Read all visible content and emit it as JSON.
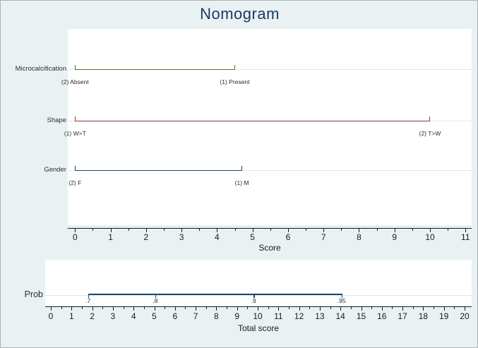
{
  "title": "Nomogram",
  "colors": {
    "background": "#e9f1f3",
    "panel": "#ffffff",
    "row_line": "#dbe8eb",
    "axis": "#1a1a1a",
    "title_text": "#1b3a66",
    "label_text": "#2b2b30",
    "navy": "#1a476f",
    "maroon": "#90353b",
    "green": "#55752f"
  },
  "chart_data": [
    {
      "type": "nomogram",
      "title": "Nomogram",
      "xlabel": "Score",
      "xlim": [
        0,
        11
      ],
      "major_tick_step": 1,
      "minor_tick_step": 0.5,
      "x_tick_labels": [
        "0",
        "1",
        "2",
        "3",
        "4",
        "5",
        "6",
        "7",
        "8",
        "9",
        "10",
        "11"
      ],
      "grid": false,
      "rows": [
        {
          "label": "Microcalcification",
          "color_key": "green",
          "range": [
            0,
            4.5
          ],
          "start_label": "(2) Absent",
          "end_label": "(1) Present"
        },
        {
          "label": "Shape",
          "color_key": "maroon",
          "range": [
            0,
            10
          ],
          "start_label": "(1) W>T",
          "end_label": "(2) T>W"
        },
        {
          "label": "Gender",
          "color_key": "navy",
          "range": [
            0,
            4.7
          ],
          "start_label": "(2) F",
          "end_label": "(1) M"
        }
      ]
    },
    {
      "type": "scale",
      "row_label": "Prob",
      "xlabel": "Total score",
      "xlim": [
        0,
        20
      ],
      "major_tick_step": 1,
      "minor_tick_step": 0.5,
      "x_tick_labels": [
        "0",
        "1",
        "2",
        "3",
        "4",
        "5",
        "6",
        "7",
        "8",
        "9",
        "10",
        "11",
        "12",
        "13",
        "14",
        "15",
        "16",
        "17",
        "18",
        "19",
        "20"
      ],
      "color_key": "navy",
      "line_range": [
        1.8,
        14.05
      ],
      "ticks": [
        {
          "label": ".7",
          "value": 1.8
        },
        {
          "label": ".8",
          "value": 5.05
        },
        {
          "label": ".9",
          "value": 9.8
        },
        {
          "label": ".95",
          "value": 14.05
        }
      ]
    }
  ]
}
